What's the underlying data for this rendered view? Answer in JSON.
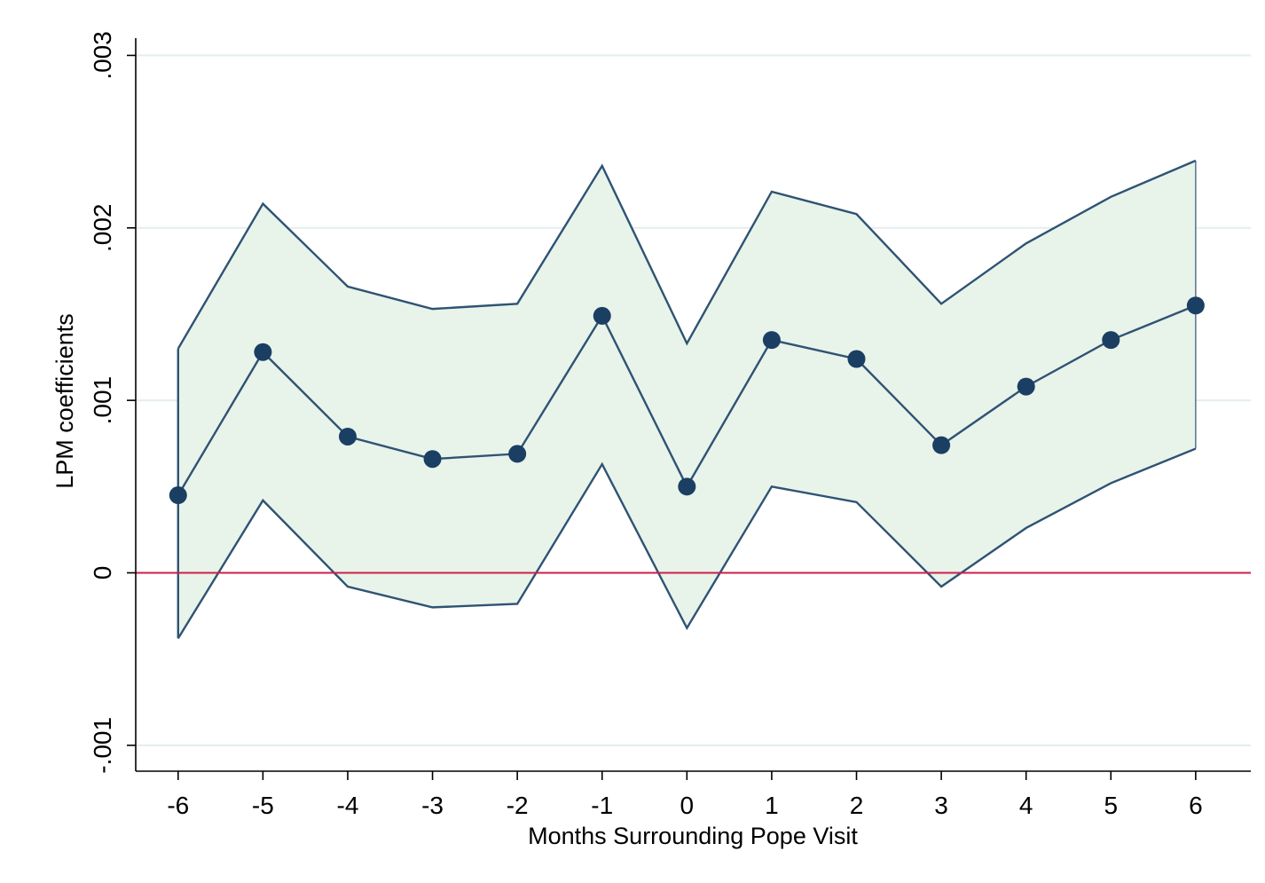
{
  "chart_data": {
    "type": "line",
    "title": "",
    "xlabel": "Months Surrounding Pope Visit",
    "ylabel": "LPM coefficients",
    "x": [
      -6,
      -5,
      -4,
      -3,
      -2,
      -1,
      0,
      1,
      2,
      3,
      4,
      5,
      6
    ],
    "x_tick_labels": [
      "-6",
      "-5",
      "-4",
      "-3",
      "-2",
      "-1",
      "0",
      "1",
      "2",
      "3",
      "4",
      "5",
      "6"
    ],
    "y_ticks": [
      -0.001,
      0,
      0.001,
      0.002,
      0.003
    ],
    "y_tick_labels": [
      "-.001",
      "0",
      ".001",
      ".002",
      ".003"
    ],
    "ylim": [
      -0.00115,
      0.0031
    ],
    "xlim": [
      -6.5,
      6.65
    ],
    "grid": true,
    "series": [
      {
        "values": [
          0.00045,
          0.00128,
          0.00079,
          0.00066,
          0.00069,
          0.00149,
          0.0005,
          0.00135,
          0.00124,
          0.00074,
          0.00108,
          0.00135,
          0.00155
        ]
      }
    ],
    "ci_lower": [
      -0.00038,
      0.00042,
      -8e-05,
      -0.0002,
      -0.00018,
      0.00063,
      -0.00032,
      0.0005,
      0.00041,
      -8e-05,
      0.00026,
      0.00052,
      0.00072
    ],
    "ci_upper": [
      0.0013,
      0.00214,
      0.00166,
      0.00153,
      0.00156,
      0.00236,
      0.00133,
      0.00221,
      0.00208,
      0.00156,
      0.00191,
      0.00218,
      0.00239
    ],
    "reference_line": {
      "y": 0
    },
    "colors": {
      "line": "#1b3f63",
      "band_fill": "#e8f3ea",
      "band_edge": "#2f5373",
      "reference": "#cc1f4a",
      "grid": "#e3eeee",
      "axis": "#000000"
    }
  }
}
